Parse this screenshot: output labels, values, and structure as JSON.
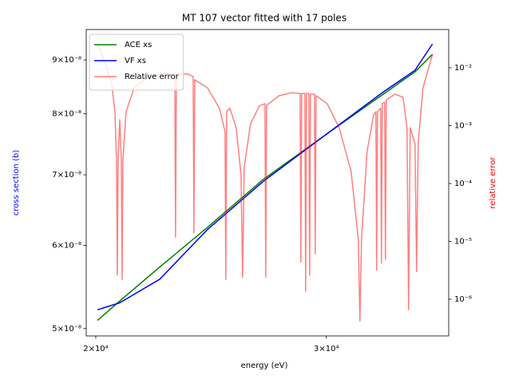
{
  "chart_data": {
    "type": "line",
    "title": "MT 107 vector fitted with 17 poles",
    "xlabel": "energy (eV)",
    "ylabel": "cross section (b)",
    "ylabel_color": "#0000ff",
    "y2label": "relative error",
    "y2label_color": "#ff0000",
    "xscale": "log",
    "yscale": "log",
    "y2scale": "log",
    "xlim": [
      19667,
      37200
    ],
    "ylim": [
      4.92e-08,
      9.62e-08
    ],
    "y2lim": [
      2.32e-07,
      0.0459
    ],
    "xticks": [
      {
        "value": 20000,
        "label": "2×10⁴"
      },
      {
        "value": 30000,
        "label": "3×10⁴"
      }
    ],
    "yticks": [
      {
        "value": 5e-08,
        "label": "5×10⁻⁸"
      },
      {
        "value": 6e-08,
        "label": "6×10⁻⁸"
      },
      {
        "value": 7e-08,
        "label": "7×10⁻⁸"
      },
      {
        "value": 8e-08,
        "label": "8×10⁻⁸"
      },
      {
        "value": 9e-08,
        "label": "9×10⁻⁸"
      }
    ],
    "y2ticks": [
      {
        "value": 1e-06,
        "label": "10⁻⁶"
      },
      {
        "value": 1e-05,
        "label": "10⁻⁵"
      },
      {
        "value": 0.0001,
        "label": "10⁻⁴"
      },
      {
        "value": 0.001,
        "label": "10⁻³"
      },
      {
        "value": 0.01,
        "label": "10⁻²"
      }
    ],
    "legend": "upper left",
    "series": [
      {
        "name": "ACE xs",
        "color": "#008000",
        "alpha": 1,
        "x": [
          20060,
          20860,
          22380,
          24340,
          26850,
          30000,
          33150,
          35060,
          36150
        ],
        "values": [
          5.09e-08,
          5.31e-08,
          5.72e-08,
          6.24e-08,
          6.93e-08,
          7.65e-08,
          8.35e-08,
          8.77e-08,
          9.11e-08
        ]
      },
      {
        "name": "VF xs",
        "color": "#0000ff",
        "alpha": 1,
        "x": [
          20060,
          20860,
          22380,
          24340,
          26850,
          30000,
          33150,
          35060,
          36150
        ],
        "values": [
          5.21e-08,
          5.29e-08,
          5.57e-08,
          6.21e-08,
          6.9e-08,
          7.65e-08,
          8.39e-08,
          8.8e-08,
          9.32e-08
        ]
      },
      {
        "name": "Relative error",
        "color": "#ff0000",
        "alpha": 0.5,
        "axis": "y2",
        "x": [
          20056,
          20340,
          20569,
          20685,
          20743,
          20772,
          20801,
          20860,
          20918,
          20948,
          20977,
          21095,
          21394,
          21909,
          22533,
          22980,
          23012,
          23045,
          23502,
          23734,
          23767,
          23800,
          24340,
          24858,
          25103,
          25138,
          25174,
          25316,
          25601,
          25818,
          25890,
          25963,
          26256,
          26665,
          26929,
          26966,
          27004,
          27617,
          28205,
          28644,
          28684,
          28724,
          28886,
          28927,
          28967,
          29090,
          29130,
          29171,
          29377,
          29418,
          29459,
          30044,
          30683,
          31335,
          31733,
          31822,
          31912,
          32227,
          32591,
          32728,
          32774,
          32820,
          33005,
          33051,
          33097,
          33237,
          33284,
          33331,
          33849,
          34327,
          34569,
          34666,
          34763,
          35057,
          35156,
          35254,
          35552,
          36156
        ],
        "values": [
          0.0259,
          0.0117,
          0.0053,
          0.00174,
          0.00026,
          2.6e-06,
          0.00026,
          0.00127,
          0.00026,
          2.2e-06,
          0.00026,
          0.00174,
          0.0045,
          0.0068,
          0.008,
          0.0078,
          1.19e-05,
          0.0078,
          0.0078,
          0.0071,
          1.4e-05,
          0.0062,
          0.0045,
          0.002,
          0.00079,
          2.2e-06,
          0.00174,
          0.002,
          0.00092,
          0.00014,
          2.4e-06,
          0.00019,
          0.00108,
          0.0022,
          0.0024,
          2.4e-06,
          0.00225,
          0.0033,
          0.0037,
          0.0036,
          4.4e-06,
          0.0036,
          0.0036,
          1.37e-06,
          0.0036,
          0.0036,
          2.6e-06,
          0.0035,
          0.0035,
          6.1e-06,
          0.0033,
          0.0024,
          0.00092,
          0.00016,
          1.08e-05,
          4.2e-07,
          1.08e-05,
          0.00036,
          0.00149,
          0.00174,
          3.2e-06,
          0.00174,
          0.002,
          4.2e-06,
          0.0024,
          0.00255,
          4.9e-06,
          0.0028,
          0.0035,
          0.0031,
          0.00092,
          6.6e-07,
          0.00092,
          0.00049,
          3e-06,
          0.00049,
          0.0045,
          0.0171
        ]
      }
    ]
  }
}
